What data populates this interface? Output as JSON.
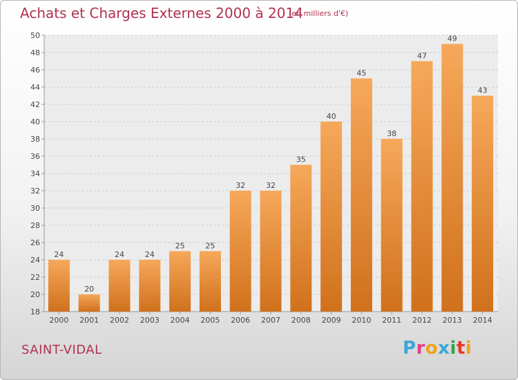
{
  "header": {
    "title": "Achats et Charges Externes 2000 à 2014",
    "unit": "(en milliers d'€)"
  },
  "footer": {
    "commune": "SAINT-VIDAL",
    "logo_text": "Proxiti"
  },
  "colors": {
    "title": "#b03250",
    "bar_top": "#f6a85a",
    "bar_bottom": "#d0711c",
    "grid": "#cccccc"
  },
  "chart_data": {
    "type": "bar",
    "title": "Achats et Charges Externes 2000 à 2014",
    "subtitle": "(en milliers d'€)",
    "xlabel": "",
    "ylabel": "",
    "categories": [
      "2000",
      "2001",
      "2002",
      "2003",
      "2004",
      "2005",
      "2006",
      "2007",
      "2008",
      "2009",
      "2010",
      "2011",
      "2012",
      "2013",
      "2014"
    ],
    "values": [
      24,
      20,
      24,
      24,
      25,
      25,
      32,
      32,
      35,
      40,
      45,
      38,
      47,
      49,
      43
    ],
    "ylim": [
      18,
      50
    ],
    "yticks": [
      18,
      20,
      22,
      24,
      26,
      28,
      30,
      32,
      34,
      36,
      38,
      40,
      42,
      44,
      46,
      48,
      50
    ],
    "grid": true,
    "data_labels": true,
    "legend": "none"
  }
}
